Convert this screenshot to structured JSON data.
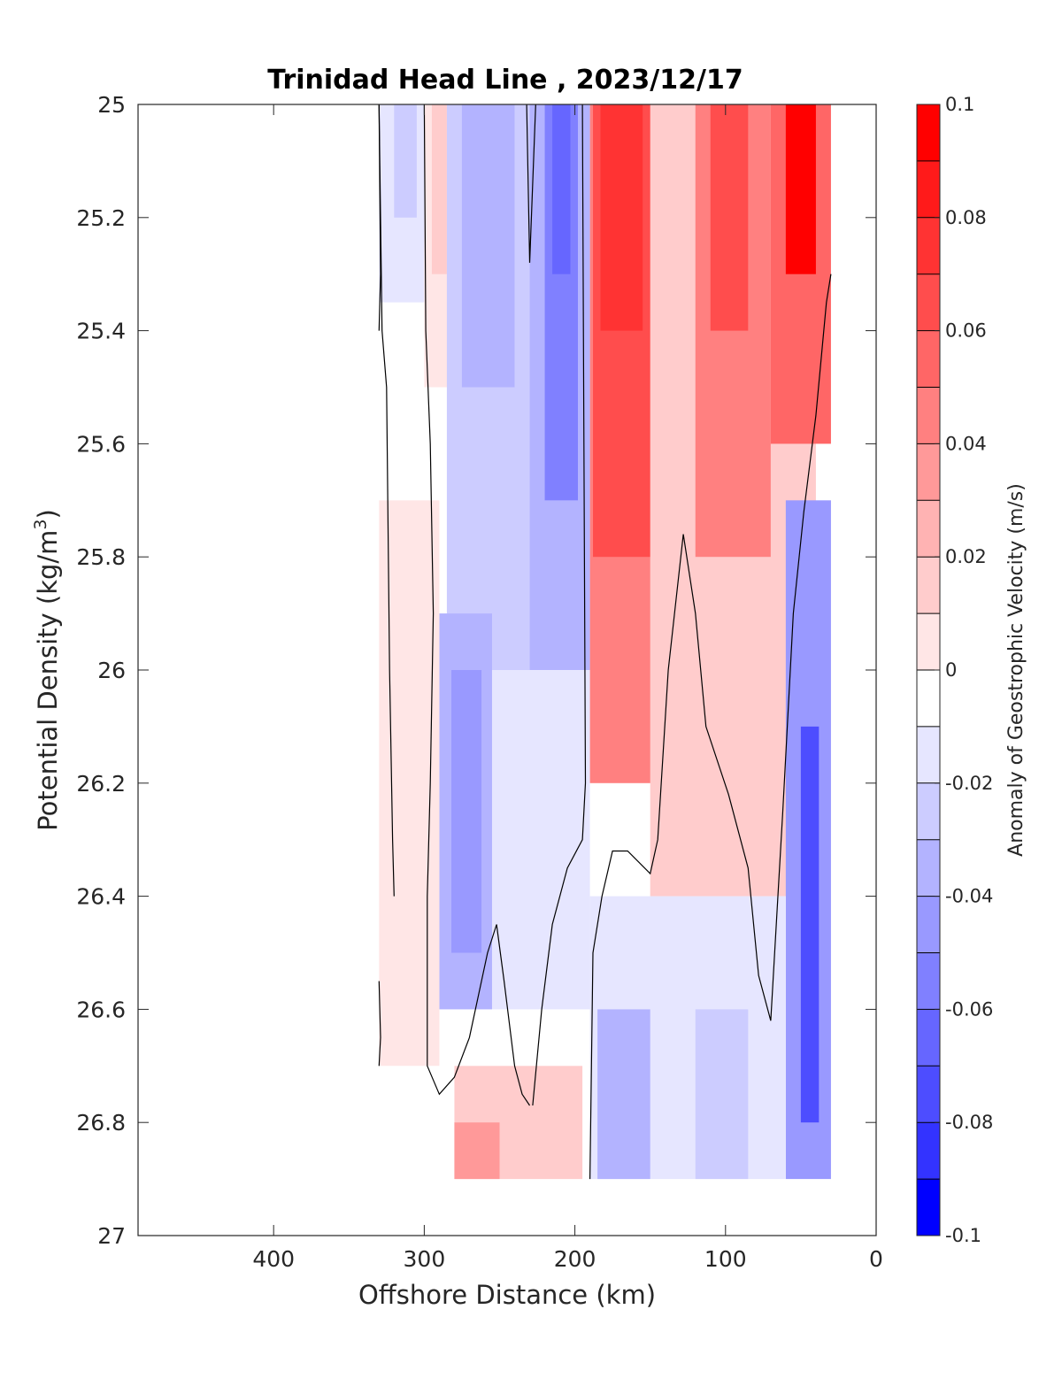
{
  "chart_data": {
    "type": "heatmap",
    "title": "Trinidad Head Line , 2023/12/17",
    "xlabel": "Offshore Distance (km)",
    "ylabel": "Potential Density (kg/m",
    "ylabel_sup": "3",
    "ylabel_close": ")",
    "colorbar_label": "Anomaly of Geostrophic Velocity (m/s)",
    "xlim": [
      490,
      0
    ],
    "x_reversed": true,
    "ylim": [
      25,
      27
    ],
    "y_reversed": true,
    "clim": [
      -0.1,
      0.1
    ],
    "xticks": [
      400,
      300,
      200,
      100,
      0
    ],
    "xtick_labels": [
      "400",
      "300",
      "200",
      "100",
      "0"
    ],
    "yticks": [
      25,
      25.2,
      25.4,
      25.6,
      25.8,
      26,
      26.2,
      26.4,
      26.6,
      26.8,
      27
    ],
    "ytick_labels": [
      "25",
      "25.2",
      "25.4",
      "25.6",
      "25.8",
      "26",
      "26.2",
      "26.4",
      "26.6",
      "26.8",
      "27"
    ],
    "colorbar_ticks": [
      0.1,
      0.08,
      0.06,
      0.04,
      0.02,
      0,
      -0.02,
      -0.04,
      -0.06,
      -0.08,
      -0.1
    ],
    "colorbar_tick_labels": [
      "0.1",
      "0.08",
      "0.06",
      "0.04",
      "0.02",
      "0",
      "-0.02",
      "-0.04",
      "-0.06",
      "-0.08",
      "-0.1"
    ],
    "colorbar_levels": [
      {
        "min": 0.09,
        "max": 0.1,
        "color": "#ff0000"
      },
      {
        "min": 0.08,
        "max": 0.09,
        "color": "#ff1a1a"
      },
      {
        "min": 0.07,
        "max": 0.08,
        "color": "#ff3333"
      },
      {
        "min": 0.06,
        "max": 0.07,
        "color": "#ff4d4d"
      },
      {
        "min": 0.05,
        "max": 0.06,
        "color": "#ff6666"
      },
      {
        "min": 0.04,
        "max": 0.05,
        "color": "#ff8080"
      },
      {
        "min": 0.03,
        "max": 0.04,
        "color": "#ff9999"
      },
      {
        "min": 0.02,
        "max": 0.03,
        "color": "#ffb3b3"
      },
      {
        "min": 0.01,
        "max": 0.02,
        "color": "#ffcccc"
      },
      {
        "min": 0.0,
        "max": 0.01,
        "color": "#ffe6e6"
      },
      {
        "min": -0.01,
        "max": 0.0,
        "color": "#ffffff"
      },
      {
        "min": -0.02,
        "max": -0.01,
        "color": "#e6e6ff"
      },
      {
        "min": -0.03,
        "max": -0.02,
        "color": "#ccccff"
      },
      {
        "min": -0.04,
        "max": -0.03,
        "color": "#b3b3ff"
      },
      {
        "min": -0.05,
        "max": -0.04,
        "color": "#9999ff"
      },
      {
        "min": -0.06,
        "max": -0.05,
        "color": "#8080ff"
      },
      {
        "min": -0.07,
        "max": -0.06,
        "color": "#6666ff"
      },
      {
        "min": -0.08,
        "max": -0.07,
        "color": "#4d4dff"
      },
      {
        "min": -0.09,
        "max": -0.08,
        "color": "#3333ff"
      },
      {
        "min": -0.1,
        "max": -0.09,
        "color": "#0000ff"
      }
    ],
    "bands": [
      {
        "name": "blue-band-315",
        "x0": 330,
        "x1": 300,
        "y_top": 25,
        "y_bottom": 25.35,
        "color": "#e6e6ff"
      },
      {
        "name": "blue-core-315",
        "x0": 320,
        "x1": 305,
        "y_top": 25,
        "y_bottom": 25.2,
        "color": "#ccccff"
      },
      {
        "name": "pink-band-290",
        "x0": 300,
        "x1": 280,
        "y_top": 25,
        "y_bottom": 25.5,
        "color": "#ffe6e6"
      },
      {
        "name": "pink-core-290",
        "x0": 295,
        "x1": 285,
        "y_top": 25,
        "y_bottom": 25.3,
        "color": "#ffcccc"
      },
      {
        "name": "blue-band-255",
        "x0": 285,
        "x1": 230,
        "y_top": 25,
        "y_bottom": 26.5,
        "color": "#ccccff"
      },
      {
        "name": "blue-core-255",
        "x0": 275,
        "x1": 240,
        "y_top": 25,
        "y_bottom": 25.5,
        "color": "#b3b3ff"
      },
      {
        "name": "blue-band-210",
        "x0": 230,
        "x1": 190,
        "y_top": 25,
        "y_bottom": 26.0,
        "color": "#b3b3ff"
      },
      {
        "name": "blue-core-210",
        "x0": 220,
        "x1": 198,
        "y_top": 25,
        "y_bottom": 25.7,
        "color": "#8080ff"
      },
      {
        "name": "blue-deep-210",
        "x0": 215,
        "x1": 203,
        "y_top": 25,
        "y_bottom": 25.3,
        "color": "#6666ff"
      },
      {
        "name": "blue-band-270",
        "x0": 290,
        "x1": 255,
        "y_top": 25.9,
        "y_bottom": 26.6,
        "color": "#b3b3ff"
      },
      {
        "name": "blue-core-270",
        "x0": 282,
        "x1": 262,
        "y_top": 26.0,
        "y_bottom": 26.5,
        "color": "#9999ff"
      },
      {
        "name": "blue-band-200",
        "x0": 255,
        "x1": 190,
        "y_top": 26.0,
        "y_bottom": 26.6,
        "color": "#e6e6ff"
      },
      {
        "name": "pink-band-315",
        "x0": 330,
        "x1": 290,
        "y_top": 25.7,
        "y_bottom": 26.7,
        "color": "#ffe6e6"
      },
      {
        "name": "red-band-175",
        "x0": 190,
        "x1": 140,
        "y_top": 25,
        "y_bottom": 26.2,
        "color": "#ff8080"
      },
      {
        "name": "red-mid-175",
        "x0": 188,
        "x1": 145,
        "y_top": 25,
        "y_bottom": 25.8,
        "color": "#ff4d4d"
      },
      {
        "name": "red-core-175",
        "x0": 183,
        "x1": 155,
        "y_top": 25,
        "y_bottom": 25.4,
        "color": "#ff3333"
      },
      {
        "name": "pink-band-120",
        "x0": 150,
        "x1": 40,
        "y_top": 25,
        "y_bottom": 26.4,
        "color": "#ffcccc"
      },
      {
        "name": "red-band-100",
        "x0": 120,
        "x1": 70,
        "y_top": 25,
        "y_bottom": 25.8,
        "color": "#ff8080"
      },
      {
        "name": "red-core-100",
        "x0": 110,
        "x1": 85,
        "y_top": 25,
        "y_bottom": 25.4,
        "color": "#ff4d4d"
      },
      {
        "name": "red-band-50",
        "x0": 70,
        "x1": 30,
        "y_top": 25,
        "y_bottom": 25.6,
        "color": "#ff6666"
      },
      {
        "name": "red-core-50",
        "x0": 60,
        "x1": 40,
        "y_top": 25,
        "y_bottom": 25.3,
        "color": "#ff0000"
      },
      {
        "name": "blue-band-shelf",
        "x0": 60,
        "x1": 30,
        "y_top": 25.7,
        "y_bottom": 26.9,
        "color": "#9999ff"
      },
      {
        "name": "blue-core-shelf",
        "x0": 50,
        "x1": 38,
        "y_top": 26.1,
        "y_bottom": 26.8,
        "color": "#4d4dff"
      },
      {
        "name": "blue-deep-140",
        "x0": 190,
        "x1": 60,
        "y_top": 26.4,
        "y_bottom": 26.9,
        "color": "#e6e6ff"
      },
      {
        "name": "blue-deep-170",
        "x0": 185,
        "x1": 150,
        "y_top": 26.6,
        "y_bottom": 26.9,
        "color": "#b3b3ff"
      },
      {
        "name": "blue-deep-100",
        "x0": 120,
        "x1": 85,
        "y_top": 26.6,
        "y_bottom": 26.9,
        "color": "#ccccff"
      },
      {
        "name": "pink-deep-260",
        "x0": 280,
        "x1": 195,
        "y_top": 26.7,
        "y_bottom": 26.9,
        "color": "#ffcccc"
      },
      {
        "name": "pink-deep-core",
        "x0": 280,
        "x1": 250,
        "y_top": 26.8,
        "y_bottom": 26.9,
        "color": "#ff9999"
      }
    ],
    "zero_contours": [
      {
        "name": "contour-330-upper",
        "points": [
          [
            330,
            25.0
          ],
          [
            329,
            25.3
          ],
          [
            330,
            25.4
          ]
        ]
      },
      {
        "name": "contour-330-main",
        "points": [
          [
            330,
            25.0
          ],
          [
            328,
            25.4
          ],
          [
            325,
            25.5
          ],
          [
            323,
            26.0
          ],
          [
            321,
            26.3
          ],
          [
            320,
            26.4
          ]
        ]
      },
      {
        "name": "contour-330-lower",
        "points": [
          [
            330,
            26.55
          ],
          [
            329,
            26.65
          ],
          [
            330,
            26.7
          ]
        ]
      },
      {
        "name": "contour-300",
        "points": [
          [
            300,
            25.0
          ],
          [
            299,
            25.4
          ],
          [
            296,
            25.6
          ],
          [
            294,
            25.9
          ],
          [
            296,
            26.2
          ],
          [
            298,
            26.4
          ],
          [
            298,
            26.7
          ],
          [
            290,
            26.75
          ],
          [
            280,
            26.72
          ],
          [
            270,
            26.65
          ],
          [
            258,
            26.5
          ],
          [
            252,
            26.45
          ],
          [
            247,
            26.55
          ],
          [
            240,
            26.7
          ],
          [
            235,
            26.75
          ],
          [
            230,
            26.77
          ]
        ]
      },
      {
        "name": "contour-230",
        "points": [
          [
            232,
            25.0
          ],
          [
            230,
            25.28
          ],
          [
            226,
            25.0
          ]
        ]
      },
      {
        "name": "contour-195",
        "points": [
          [
            195,
            25.0
          ],
          [
            194,
            25.6
          ],
          [
            193,
            26.2
          ],
          [
            195,
            26.3
          ],
          [
            205,
            26.35
          ],
          [
            215,
            26.45
          ],
          [
            222,
            26.6
          ],
          [
            228,
            26.77
          ]
        ]
      },
      {
        "name": "contour-190",
        "points": [
          [
            190,
            26.9
          ],
          [
            188,
            26.5
          ],
          [
            182,
            26.4
          ],
          [
            175,
            26.32
          ],
          [
            165,
            26.32
          ],
          [
            150,
            26.36
          ],
          [
            145,
            26.3
          ],
          [
            138,
            26.0
          ],
          [
            128,
            25.76
          ],
          [
            120,
            25.9
          ],
          [
            113,
            26.1
          ],
          [
            98,
            26.22
          ],
          [
            85,
            26.35
          ],
          [
            78,
            26.54
          ],
          [
            70,
            26.62
          ],
          [
            62,
            26.25
          ],
          [
            55,
            25.9
          ],
          [
            48,
            25.72
          ],
          [
            40,
            25.55
          ],
          [
            33,
            25.35
          ],
          [
            30,
            25.3
          ]
        ]
      }
    ]
  }
}
